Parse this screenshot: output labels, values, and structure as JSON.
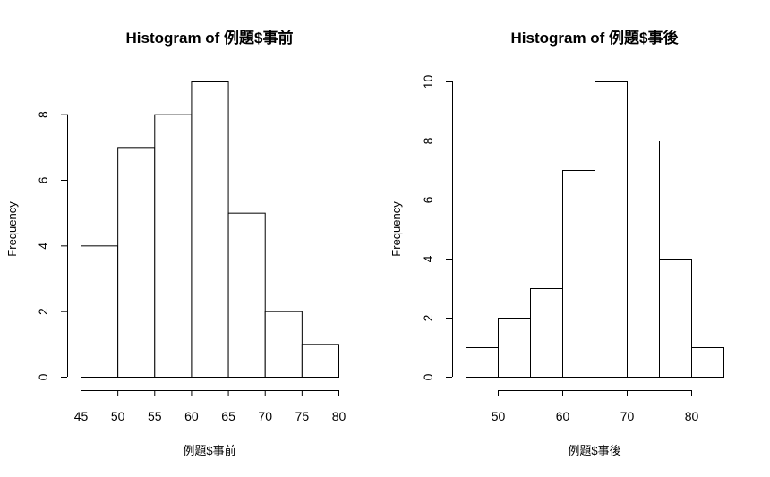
{
  "chart_data": [
    {
      "type": "bar",
      "title": "Histogram of 例題$事前",
      "xlabel": "例題$事前",
      "ylabel": "Frequency",
      "breaks": [
        45,
        50,
        55,
        60,
        65,
        70,
        75,
        80
      ],
      "values": [
        4,
        7,
        8,
        9,
        5,
        2,
        1
      ],
      "xticks": [
        45,
        50,
        55,
        60,
        65,
        70,
        75,
        80
      ],
      "yticks": [
        0,
        2,
        4,
        6,
        8
      ],
      "xlim": [
        45,
        80
      ],
      "ylim": [
        0,
        9
      ]
    },
    {
      "type": "bar",
      "title": "Histogram of 例題$事後",
      "xlabel": "例題$事後",
      "ylabel": "Frequency",
      "breaks": [
        45,
        50,
        55,
        60,
        65,
        70,
        75,
        80,
        85
      ],
      "values": [
        1,
        2,
        3,
        7,
        10,
        8,
        4,
        1
      ],
      "xticks": [
        50,
        60,
        70,
        80
      ],
      "yticks": [
        0,
        2,
        4,
        6,
        8,
        10
      ],
      "xlim": [
        45,
        85
      ],
      "ylim": [
        0,
        10
      ]
    }
  ]
}
